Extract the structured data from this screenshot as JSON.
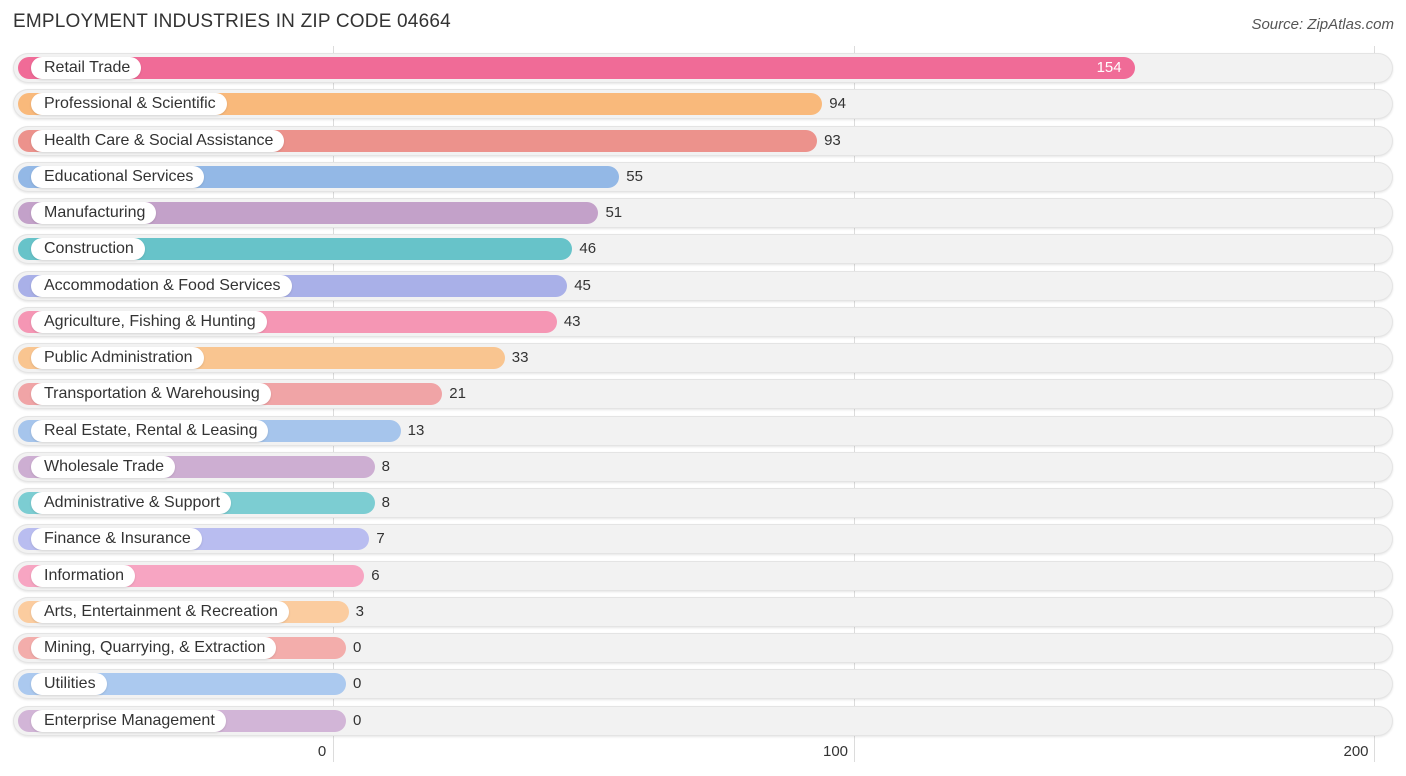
{
  "title": "EMPLOYMENT INDUSTRIES IN ZIP CODE 04664",
  "source": "Source: ZipAtlas.com",
  "chart_data": {
    "type": "bar",
    "orientation": "horizontal",
    "title": "EMPLOYMENT INDUSTRIES IN ZIP CODE 04664",
    "xlabel": "",
    "ylabel": "",
    "xlim": [
      0,
      200
    ],
    "ticks": [
      0,
      100,
      200
    ],
    "grid": true,
    "categories": [
      "Retail Trade",
      "Professional & Scientific",
      "Health Care & Social Assistance",
      "Educational Services",
      "Manufacturing",
      "Construction",
      "Accommodation & Food Services",
      "Agriculture, Fishing & Hunting",
      "Public Administration",
      "Transportation & Warehousing",
      "Real Estate, Rental & Leasing",
      "Wholesale Trade",
      "Administrative & Support",
      "Finance & Insurance",
      "Information",
      "Arts, Entertainment & Recreation",
      "Mining, Quarrying, & Extraction",
      "Utilities",
      "Enterprise Management"
    ],
    "values": [
      154,
      94,
      93,
      55,
      51,
      46,
      45,
      43,
      33,
      21,
      13,
      8,
      8,
      7,
      6,
      3,
      0,
      0,
      0
    ],
    "colors": [
      "#f06b97",
      "#f9b97b",
      "#ec928c",
      "#93b8e6",
      "#c3a1c9",
      "#67c3c9",
      "#a9b0e8",
      "#f596b4",
      "#f9c590",
      "#f0a4a6",
      "#a6c5ec",
      "#cdaed2",
      "#7ccdd2",
      "#b9bdf0",
      "#f7a5c2",
      "#fbcc9f",
      "#f3adab",
      "#abc9ef",
      "#d2b5d7"
    ]
  }
}
